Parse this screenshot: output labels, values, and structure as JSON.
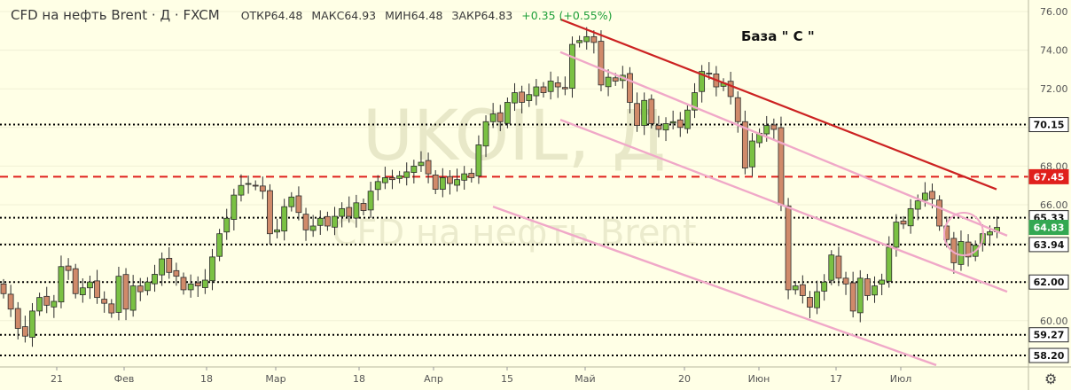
{
  "header": {
    "symbol": "CFD на нефть Brent · Д · FXCM",
    "open_label": "ОТКР",
    "open_value": "64.48",
    "high_label": "МАКС",
    "high_value": "64.93",
    "low_label": "МИН",
    "low_value": "64.48",
    "close_label": "ЗАКР",
    "close_value": "64.83",
    "change": "+0.35 (+0.55%)"
  },
  "watermark": {
    "ticker": "UKOIL, Д",
    "name": "CFD на нефть Brent"
  },
  "annotation": "База \" С \"",
  "chart_data": {
    "type": "candlestick",
    "x_labels": [
      "21",
      "Фев",
      "18",
      "Мар",
      "18",
      "Апр",
      "15",
      "Май",
      "20",
      "Июн",
      "17",
      "Июл"
    ],
    "y_ticks": [
      "76.00",
      "74.00",
      "72.00",
      "68.00",
      "66.00",
      "62.00",
      "60.00"
    ],
    "y_range": [
      58.0,
      76.5
    ],
    "levels": [
      {
        "value": 70.15,
        "label": "70.15",
        "style": "dotted",
        "color": "#000000"
      },
      {
        "value": 67.45,
        "label": "67.45",
        "style": "dashed",
        "color": "#e0201c"
      },
      {
        "value": 65.33,
        "label": "65.33",
        "style": "dotted",
        "color": "#000000"
      },
      {
        "value": 64.83,
        "label": "64.83",
        "style": "price",
        "color": "#33a852"
      },
      {
        "value": 63.94,
        "label": "63.94",
        "style": "dotted",
        "color": "#000000"
      },
      {
        "value": 62.0,
        "label": "62.00",
        "style": "dotted",
        "color": "#000000"
      },
      {
        "value": 59.27,
        "label": "59.27",
        "style": "dotted",
        "color": "#000000"
      },
      {
        "value": 58.2,
        "label": "58.20",
        "style": "dotted",
        "color": "#000000"
      }
    ],
    "closes": [
      61.4,
      60.6,
      59.6,
      59.2,
      60.5,
      61.2,
      60.8,
      61.0,
      62.8,
      62.6,
      61.4,
      61.7,
      62.0,
      61.2,
      60.9,
      60.4,
      62.3,
      60.6,
      61.8,
      61.5,
      62.0,
      62.4,
      63.2,
      62.5,
      62.3,
      61.6,
      61.9,
      61.8,
      62.1,
      63.3,
      64.5,
      65.3,
      66.5,
      67.0,
      67.1,
      67.0,
      66.7,
      64.5,
      64.7,
      65.9,
      66.4,
      65.6,
      64.7,
      64.9,
      65.3,
      64.9,
      65.4,
      65.8,
      65.4,
      66.1,
      65.7,
      66.7,
      67.2,
      67.4,
      67.3,
      67.5,
      67.7,
      68.0,
      68.2,
      67.6,
      66.8,
      67.4,
      67.1,
      67.3,
      67.6,
      67.4,
      69.1,
      70.3,
      70.7,
      70.3,
      71.3,
      71.8,
      71.3,
      71.7,
      72.1,
      71.8,
      72.4,
      72.1,
      72.0,
      74.3,
      74.5,
      74.7,
      74.4,
      72.2,
      72.6,
      72.4,
      72.7,
      71.3,
      70.1,
      71.4,
      70.2,
      69.9,
      70.2,
      70.3,
      70.0,
      70.9,
      71.8,
      72.9,
      72.8,
      72.1,
      72.3,
      71.6,
      70.3,
      67.9,
      69.3,
      69.7,
      70.1,
      69.9,
      66.0,
      61.6,
      61.8,
      61.3,
      60.7,
      61.5,
      62.0,
      63.4,
      62.2,
      61.9,
      60.5,
      62.2,
      61.3,
      61.8,
      62.1,
      63.8,
      65.1,
      65.0,
      65.8,
      66.2,
      66.6,
      66.3,
      64.9,
      64.2,
      63.0,
      64.1,
      63.3,
      63.9,
      64.5,
      64.6,
      64.83
    ],
    "channels": [
      {
        "name": "resistance",
        "color": "#cc2222",
        "from": {
          "x": "Апр 25",
          "y": 75.6
        },
        "to": {
          "x": "Июл 14",
          "y": 66.8
        }
      },
      {
        "name": "channel-1",
        "color": "#f0a8c8",
        "from": {
          "x": "Апр 24",
          "y": 73.9
        },
        "to": {
          "x": "Июл 15",
          "y": 64.4
        }
      },
      {
        "name": "channel-2",
        "color": "#f0a8c8",
        "from": {
          "x": "Апр 25",
          "y": 70.4
        },
        "to": {
          "x": "Июл 15",
          "y": 61.5
        }
      },
      {
        "name": "channel-3",
        "color": "#f0a8c8",
        "from": {
          "x": "Мар 28",
          "y": 65.9
        },
        "to": {
          "x": "Июл 13",
          "y": 57.7
        }
      }
    ]
  }
}
